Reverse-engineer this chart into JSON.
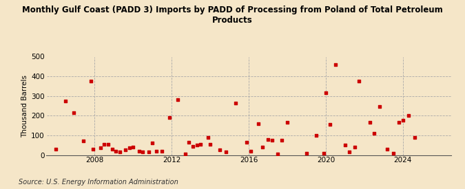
{
  "title": "Monthly Gulf Coast (PADD 3) Imports by PADD of Processing from Poland of Total Petroleum\nProducts",
  "ylabel": "Thousand Barrels",
  "source": "Source: U.S. Energy Information Administration",
  "background_color": "#f5e6c8",
  "marker_color": "#cc0000",
  "xlim": [
    2005.5,
    2026.5
  ],
  "ylim": [
    0,
    500
  ],
  "yticks": [
    0,
    100,
    200,
    300,
    400,
    500
  ],
  "xticks": [
    2008,
    2012,
    2016,
    2020,
    2024
  ],
  "points": [
    [
      2006.0,
      30
    ],
    [
      2006.5,
      275
    ],
    [
      2006.9,
      215
    ],
    [
      2007.4,
      70
    ],
    [
      2007.8,
      375
    ],
    [
      2007.9,
      30
    ],
    [
      2008.3,
      35
    ],
    [
      2008.5,
      55
    ],
    [
      2008.7,
      55
    ],
    [
      2008.9,
      30
    ],
    [
      2009.1,
      20
    ],
    [
      2009.3,
      15
    ],
    [
      2009.6,
      25
    ],
    [
      2009.8,
      35
    ],
    [
      2010.0,
      40
    ],
    [
      2010.3,
      20
    ],
    [
      2010.5,
      15
    ],
    [
      2010.8,
      15
    ],
    [
      2011.0,
      60
    ],
    [
      2011.2,
      20
    ],
    [
      2011.5,
      20
    ],
    [
      2011.9,
      190
    ],
    [
      2012.3,
      280
    ],
    [
      2012.7,
      5
    ],
    [
      2012.9,
      65
    ],
    [
      2013.1,
      45
    ],
    [
      2013.3,
      50
    ],
    [
      2013.5,
      55
    ],
    [
      2013.9,
      90
    ],
    [
      2014.0,
      55
    ],
    [
      2014.5,
      25
    ],
    [
      2014.8,
      15
    ],
    [
      2015.3,
      265
    ],
    [
      2015.9,
      65
    ],
    [
      2016.1,
      20
    ],
    [
      2016.5,
      160
    ],
    [
      2016.7,
      40
    ],
    [
      2017.0,
      80
    ],
    [
      2017.2,
      75
    ],
    [
      2017.5,
      5
    ],
    [
      2017.7,
      75
    ],
    [
      2018.0,
      165
    ],
    [
      2019.0,
      10
    ],
    [
      2019.5,
      100
    ],
    [
      2019.9,
      10
    ],
    [
      2020.0,
      315
    ],
    [
      2020.2,
      155
    ],
    [
      2020.5,
      460
    ],
    [
      2021.0,
      50
    ],
    [
      2021.2,
      15
    ],
    [
      2021.5,
      40
    ],
    [
      2021.7,
      375
    ],
    [
      2022.3,
      165
    ],
    [
      2022.5,
      110
    ],
    [
      2022.8,
      245
    ],
    [
      2023.2,
      30
    ],
    [
      2023.5,
      10
    ],
    [
      2023.8,
      165
    ],
    [
      2024.0,
      175
    ],
    [
      2024.3,
      200
    ],
    [
      2024.6,
      90
    ]
  ]
}
